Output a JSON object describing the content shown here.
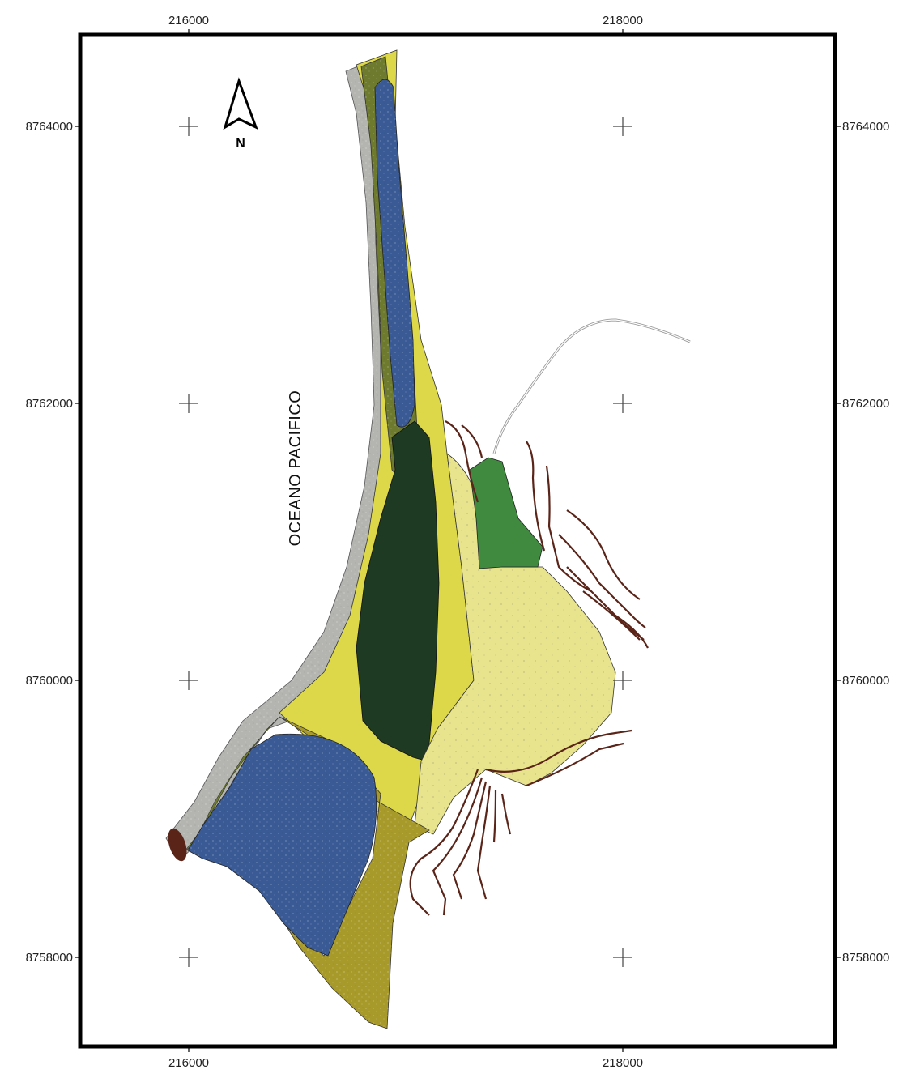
{
  "map": {
    "ocean_label": "OCEANO PACIFICO",
    "north_label": "N",
    "x_ticks_top": [
      "216000",
      "218000"
    ],
    "x_ticks_bottom": [
      "216000",
      "218000"
    ],
    "y_ticks_left": [
      "8764000",
      "8762000",
      "8760000",
      "8758000"
    ],
    "y_ticks_right": [
      "8764000",
      "8762000",
      "8760000",
      "8758000"
    ]
  },
  "colors": {
    "frame": "#000000",
    "coastal-sand": "#b4b4b0",
    "blue-unit": "#3a5a96",
    "olive-green-unit": "#6e7a2e",
    "dark-green-unit": "#1f3a22",
    "yellow-unit": "#dcd84a",
    "pale-yellow-unit": "#e8e48e",
    "ochre-unit": "#a89a2a",
    "medium-green-unit": "#3f8a3f",
    "contour-lines": "#5a2418"
  }
}
